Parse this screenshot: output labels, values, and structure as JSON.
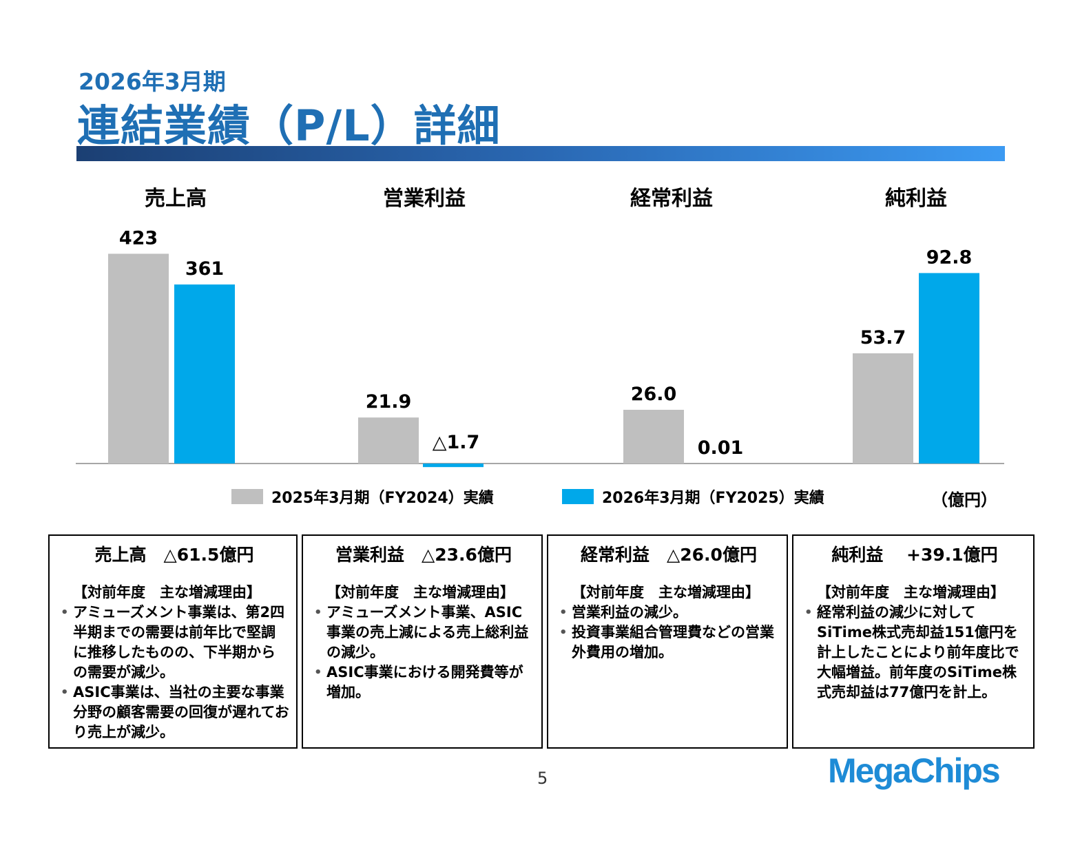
{
  "header": {
    "subtitle": "2026年3月期",
    "title": "連結業績（P/L）詳細"
  },
  "colors": {
    "accent": "#1f6fb4",
    "fy2024": "#bfbfbf",
    "fy2025": "#00a8ea"
  },
  "chart_data": {
    "type": "bar",
    "categories": [
      "売上高",
      "営業利益",
      "経常利益",
      "純利益"
    ],
    "series": [
      {
        "name": "2025年3月期（FY2024）実績",
        "values": [
          423,
          21.9,
          26.0,
          53.7
        ],
        "labels": [
          "423",
          "21.9",
          "26.0",
          "53.7"
        ]
      },
      {
        "name": "2026年3月期（FY2025）実績",
        "values": [
          361,
          -1.7,
          0.01,
          92.8
        ],
        "labels": [
          "361",
          "△1.7",
          "0.01",
          "92.8"
        ]
      }
    ],
    "unit": "（億円）",
    "grid": false,
    "legend": "bottom",
    "note": "Each category drawn with its own scale (broken-axis style)"
  },
  "boxes": [
    {
      "head": "売上高　△61.5億円",
      "sub": "【対前年度　主な増減理由】",
      "bullets": [
        "アミューズメント事業は、第2四半期までの需要は前年比で堅調に推移したものの、下半期からの需要が減少。",
        "ASIC事業は、当社の主要な事業分野の顧客需要の回復が遅れており売上が減少。"
      ]
    },
    {
      "head": "営業利益　△23.6億円",
      "sub": "【対前年度　主な増減理由】",
      "bullets": [
        "アミューズメント事業、ASIC事業の売上減による売上総利益の減少。",
        "ASIC事業における開発費等が増加。"
      ]
    },
    {
      "head": "経常利益　△26.0億円",
      "sub": "【対前年度　主な増減理由】",
      "bullets": [
        "営業利益の減少。",
        "投資事業組合管理費などの営業外費用の増加。"
      ]
    },
    {
      "head": "純利益　 +39.1億円",
      "sub": "【対前年度　主な増減理由】",
      "bullets": [
        "経常利益の減少に対してSiTime株式売却益151億円を計上したことにより前年度比で大幅増益。前年度のSiTime株式売却益は77億円を計上。"
      ]
    }
  ],
  "footer": {
    "page": "5",
    "logo": "MegaChips"
  }
}
